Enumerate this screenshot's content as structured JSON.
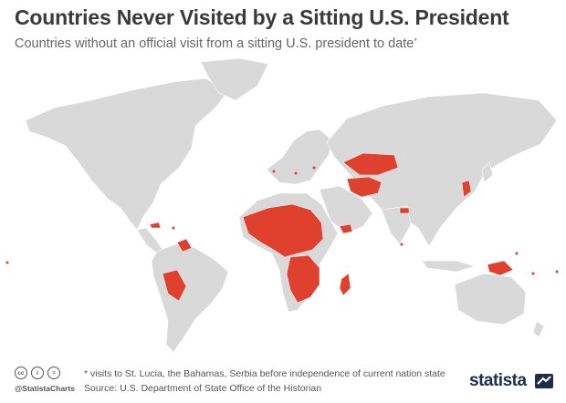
{
  "header": {
    "title": "Countries Never Visited by a Sitting U.S. President",
    "subtitle": "Countries without an official visit from a sitting U.S. president to date",
    "subtitle_marker": "*"
  },
  "map": {
    "land_color": "#d9d9d9",
    "highlight_color": "#e0412f",
    "highlighted_regions": [
      "Mongolia",
      "Kazakhstan",
      "Uzbekistan",
      "Turkmenistan",
      "Kyrgyzstan",
      "Tajikistan",
      "North Korea",
      "Bhutan",
      "Yemen",
      "Madagascar",
      "Bolivia",
      "Paraguay",
      "Guyana",
      "Suriname",
      "Papua New Guinea",
      "Chad",
      "Niger",
      "Mali",
      "Sudan",
      "Central African Republic",
      "Cameroon",
      "Gabon",
      "Congo",
      "Zambia",
      "Mozambique",
      "Malawi",
      "Namibia"
    ]
  },
  "footer": {
    "cc_icons": [
      "cc-icon",
      "by-icon",
      "nd-icon"
    ],
    "cc_labels": [
      "cc",
      "i",
      "="
    ],
    "handle": "@StatistaCharts",
    "note": "* visits to St. Lucia, the Bahamas, Serbia before independence of current nation state",
    "source": "Source: U.S. Department of State Office of the Historian",
    "brand": "statista"
  }
}
